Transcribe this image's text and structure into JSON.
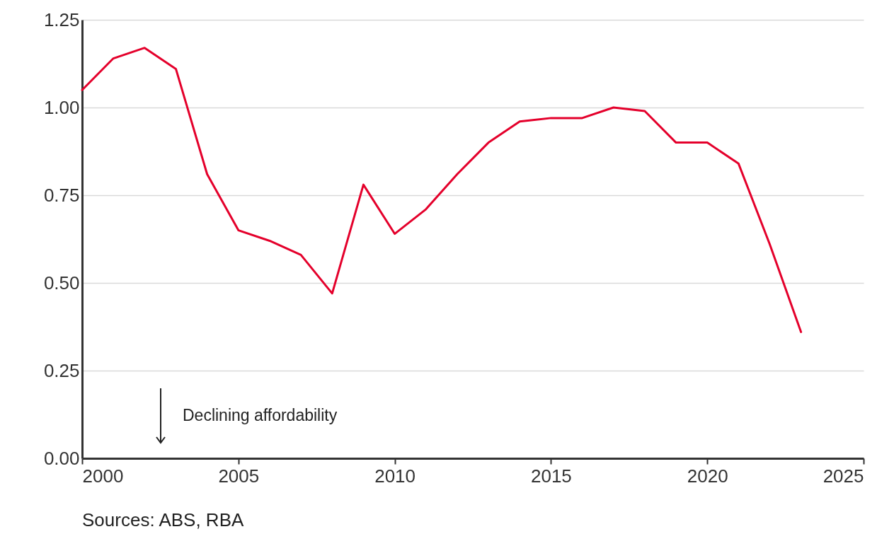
{
  "chart_data": {
    "type": "line",
    "x": [
      2000,
      2001,
      2002,
      2003,
      2004,
      2005,
      2006,
      2007,
      2008,
      2009,
      2010,
      2011,
      2012,
      2013,
      2014,
      2015,
      2016,
      2017,
      2018,
      2019,
      2020,
      2021,
      2022,
      2023
    ],
    "series": [
      {
        "color": "#e4002b",
        "values": [
          1.05,
          1.14,
          1.17,
          1.11,
          0.81,
          0.65,
          0.62,
          0.58,
          0.47,
          0.78,
          0.64,
          0.71,
          0.81,
          0.9,
          0.96,
          0.97,
          0.97,
          1.0,
          0.99,
          0.9,
          0.9,
          0.84,
          0.61,
          0.36
        ]
      }
    ],
    "xlim": [
      2000,
      2025
    ],
    "xticks": [
      2000,
      2005,
      2010,
      2015,
      2020,
      2025
    ],
    "ylim": [
      0,
      1.25
    ],
    "yticks": [
      {
        "value": 0,
        "label": "0.00"
      },
      {
        "value": 0.25,
        "label": "0.25"
      },
      {
        "value": 0.5,
        "label": "0.50"
      },
      {
        "value": 0.75,
        "label": "0.75"
      },
      {
        "value": 1,
        "label": "1.00"
      },
      {
        "value": 1.25,
        "label": "1.25"
      }
    ],
    "grid": "y",
    "marker": "none",
    "line_style": "solid",
    "annotations": [
      "Declining affordability",
      "Sources: ABS, RBA"
    ]
  }
}
